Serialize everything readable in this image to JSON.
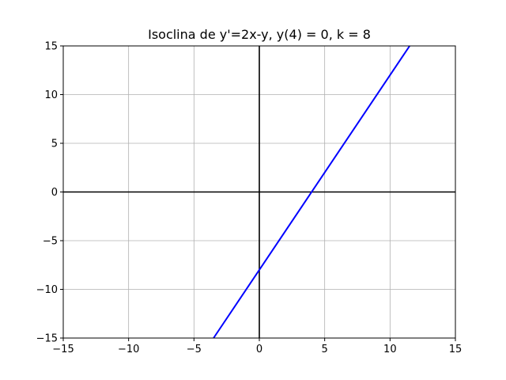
{
  "chart_data": {
    "type": "line",
    "title": "Isoclina de y'=2x-y, y(4) = 0, k = 8",
    "xlabel": "",
    "ylabel": "",
    "xlim": [
      -15,
      15
    ],
    "ylim": [
      -15,
      15
    ],
    "xticks": [
      -15,
      -10,
      -5,
      0,
      5,
      10,
      15
    ],
    "yticks": [
      -15,
      -10,
      -5,
      0,
      5,
      10,
      15
    ],
    "xtick_labels": [
      "−15",
      "−10",
      "−5",
      "0",
      "5",
      "10",
      "15"
    ],
    "ytick_labels": [
      "−15",
      "−10",
      "−5",
      "0",
      "5",
      "10",
      "15"
    ],
    "grid": true,
    "series": [
      {
        "color": "#0000ff",
        "x": [
          -3.5,
          11.5
        ],
        "y": [
          -15,
          15
        ]
      }
    ],
    "axis_lines": {
      "color": "#000000",
      "x_at": 0,
      "y_at": 0
    },
    "grid_color": "#b0b0b0"
  }
}
